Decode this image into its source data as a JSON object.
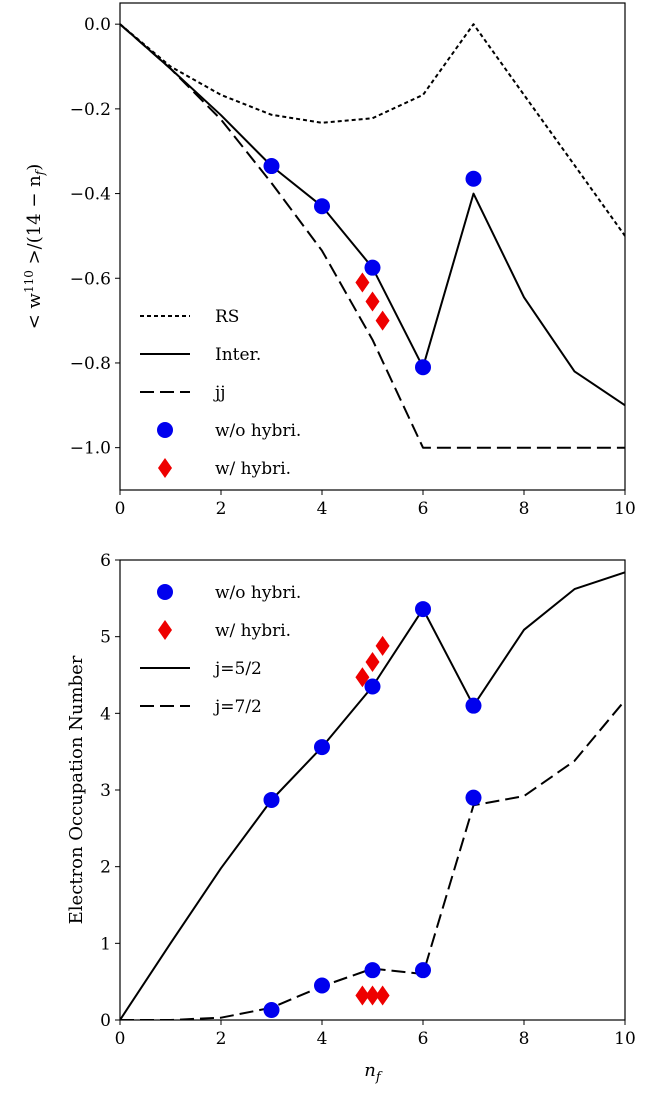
{
  "chart_data": [
    {
      "type": "line",
      "ylabel": "< w^110 >/(14 − n_f)",
      "xlabel": "",
      "xlim": [
        0,
        10
      ],
      "ylim": [
        -1.1,
        0.05
      ],
      "xticks": [
        0,
        2,
        4,
        6,
        8,
        10
      ],
      "yticks": [
        0.0,
        -0.2,
        -0.4,
        -0.6,
        -0.8,
        -1.0
      ],
      "xtick_labels": [
        "0",
        "2",
        "4",
        "6",
        "8",
        "10"
      ],
      "ytick_labels": [
        "0.0",
        "−0.2",
        "−0.4",
        "−0.6",
        "−0.8",
        "−1.0"
      ],
      "legend_position": "lower-left",
      "series": [
        {
          "name": "RS",
          "style": "dotted",
          "color": "#000000",
          "x": [
            0,
            1,
            2,
            3,
            4,
            5,
            6,
            7,
            8,
            9,
            10
          ],
          "y": [
            0.0,
            -0.1,
            -0.167,
            -0.214,
            -0.233,
            -0.222,
            -0.167,
            0.0,
            -0.167,
            -0.333,
            -0.5
          ]
        },
        {
          "name": "Inter.",
          "style": "solid",
          "color": "#000000",
          "x": [
            0,
            1,
            2,
            3,
            4,
            5,
            6,
            7,
            8,
            9,
            10
          ],
          "y": [
            0.0,
            -0.105,
            -0.215,
            -0.335,
            -0.43,
            -0.575,
            -0.81,
            -0.4,
            -0.645,
            -0.82,
            -0.9
          ]
        },
        {
          "name": "jj",
          "style": "dashed",
          "color": "#000000",
          "x": [
            0,
            1,
            2,
            3,
            4,
            5,
            6,
            7,
            8,
            9,
            10
          ],
          "y": [
            0.0,
            -0.105,
            -0.225,
            -0.375,
            -0.535,
            -0.745,
            -1.0,
            -1.0,
            -1.0,
            -1.0,
            -1.0
          ]
        },
        {
          "name": "w/o hybri.",
          "style": "circle-marker",
          "color": "#0000ee",
          "x": [
            3,
            4,
            5,
            6,
            7
          ],
          "y": [
            -0.335,
            -0.43,
            -0.575,
            -0.81,
            -0.365
          ]
        },
        {
          "name": "w/ hybri.",
          "style": "diamond-marker",
          "color": "#ee0000",
          "x": [
            4.8,
            5.0,
            5.2
          ],
          "y": [
            -0.61,
            -0.655,
            -0.7
          ]
        }
      ]
    },
    {
      "type": "line",
      "ylabel": "Electron Occupation Number",
      "xlabel": "n_f",
      "xlim": [
        0,
        10
      ],
      "ylim": [
        0,
        6
      ],
      "xticks": [
        0,
        2,
        4,
        6,
        8,
        10
      ],
      "yticks": [
        0,
        1,
        2,
        3,
        4,
        5,
        6
      ],
      "xtick_labels": [
        "0",
        "2",
        "4",
        "6",
        "8",
        "10"
      ],
      "ytick_labels": [
        "0",
        "1",
        "2",
        "3",
        "4",
        "5",
        "6"
      ],
      "legend_position": "upper-left",
      "series": [
        {
          "name": "w/o hybri.",
          "style": "circle-marker",
          "color": "#0000ee",
          "x": [
            3,
            4,
            5,
            6,
            7,
            3,
            4,
            5,
            6,
            7
          ],
          "y": [
            2.87,
            3.56,
            4.35,
            5.36,
            4.1,
            0.13,
            0.45,
            0.65,
            0.65,
            2.9
          ]
        },
        {
          "name": "w/ hybri.",
          "style": "diamond-marker",
          "color": "#ee0000",
          "x": [
            4.8,
            5.0,
            5.2,
            4.8,
            5.0,
            5.2
          ],
          "y": [
            4.47,
            4.67,
            4.88,
            0.32,
            0.32,
            0.32
          ]
        },
        {
          "name": "j=5/2",
          "style": "solid",
          "color": "#000000",
          "x": [
            0,
            1,
            2,
            3,
            4,
            5,
            6,
            7,
            8,
            9,
            10
          ],
          "y": [
            0.0,
            1.0,
            1.98,
            2.87,
            3.56,
            4.35,
            5.36,
            4.1,
            5.09,
            5.62,
            5.84
          ]
        },
        {
          "name": "j=7/2",
          "style": "dashed",
          "color": "#000000",
          "x": [
            0,
            1,
            2,
            3,
            4,
            5,
            6,
            7,
            8,
            9,
            10
          ],
          "y": [
            0.0,
            0.0,
            0.03,
            0.16,
            0.44,
            0.67,
            0.6,
            2.8,
            2.92,
            3.38,
            4.17
          ]
        }
      ]
    }
  ]
}
